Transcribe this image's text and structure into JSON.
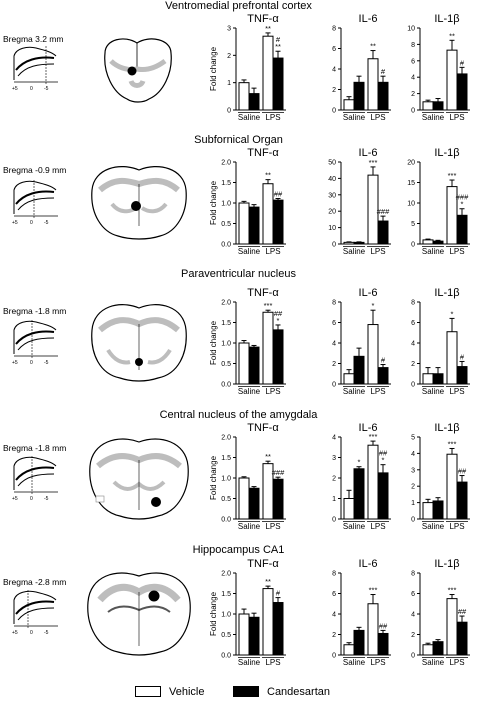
{
  "legend": {
    "items": [
      {
        "label": "Vehicle",
        "color": "#ffffff"
      },
      {
        "label": "Candesartan",
        "color": "#000000"
      }
    ]
  },
  "panels": [
    {
      "region": "Ventromedial prefrontal cortex",
      "bregma": "Bregma 3.2 mm"
    },
    {
      "region": "Subfornical Organ",
      "bregma": "Bregma -0.9 mm"
    },
    {
      "region": "Paraventricular nucleus",
      "bregma": "Bregma -1.8 mm"
    },
    {
      "region": "Central nucleus of the amygdala",
      "bregma": "Bregma -1.8 mm"
    },
    {
      "region": "Hippocampus CA1",
      "bregma": "Bregma -2.8 mm"
    }
  ],
  "mini_axis_labels": [
    "+5",
    "0",
    "-5"
  ],
  "chart_data": [
    {
      "type": "bar",
      "row": 0,
      "title": "TNF-α",
      "ylabel": "Fold change",
      "ylim": [
        0,
        3
      ],
      "yticks": [
        0,
        1,
        2,
        3
      ],
      "categories": [
        "Saline",
        "LPS"
      ],
      "series": [
        {
          "name": "Vehicle",
          "values": [
            1.0,
            2.7
          ],
          "err": [
            0.1,
            0.12
          ]
        },
        {
          "name": "Candesartan",
          "values": [
            0.6,
            1.9
          ],
          "err": [
            0.2,
            0.25
          ]
        }
      ],
      "annotations": [
        {
          "category": "LPS",
          "series": "Vehicle",
          "text": "**"
        },
        {
          "category": "LPS",
          "series": "Candesartan",
          "text": "#\n**"
        }
      ]
    },
    {
      "type": "bar",
      "row": 0,
      "title": "IL-6",
      "ylabel": "",
      "ylim": [
        0,
        8
      ],
      "yticks": [
        0,
        2,
        4,
        6,
        8
      ],
      "categories": [
        "Saline",
        "LPS"
      ],
      "series": [
        {
          "name": "Vehicle",
          "values": [
            1.0,
            5.0
          ],
          "err": [
            0.3,
            0.8
          ]
        },
        {
          "name": "Candesartan",
          "values": [
            2.7,
            2.7
          ],
          "err": [
            0.6,
            0.6
          ]
        }
      ],
      "annotations": [
        {
          "category": "LPS",
          "series": "Vehicle",
          "text": "**"
        },
        {
          "category": "LPS",
          "series": "Candesartan",
          "text": "#"
        }
      ]
    },
    {
      "type": "bar",
      "row": 0,
      "title": "IL-1β",
      "ylabel": "",
      "ylim": [
        0,
        10
      ],
      "yticks": [
        0,
        2,
        4,
        6,
        8,
        10
      ],
      "categories": [
        "Saline",
        "LPS"
      ],
      "series": [
        {
          "name": "Vehicle",
          "values": [
            1.0,
            7.3
          ],
          "err": [
            0.2,
            1.2
          ]
        },
        {
          "name": "Candesartan",
          "values": [
            1.0,
            4.4
          ],
          "err": [
            0.4,
            0.8
          ]
        }
      ],
      "annotations": [
        {
          "category": "LPS",
          "series": "Vehicle",
          "text": "**"
        },
        {
          "category": "LPS",
          "series": "Candesartan",
          "text": "#"
        }
      ]
    },
    {
      "type": "bar",
      "row": 1,
      "title": "TNF-α",
      "ylabel": "Fold change",
      "ylim": [
        0,
        2
      ],
      "yticks": [
        0.0,
        0.5,
        1.0,
        1.5,
        2.0
      ],
      "categories": [
        "Saline",
        "LPS"
      ],
      "series": [
        {
          "name": "Vehicle",
          "values": [
            1.0,
            1.47
          ],
          "err": [
            0.04,
            0.1
          ]
        },
        {
          "name": "Candesartan",
          "values": [
            0.9,
            1.07
          ],
          "err": [
            0.06,
            0.04
          ]
        }
      ],
      "annotations": [
        {
          "category": "LPS",
          "series": "Vehicle",
          "text": "**"
        },
        {
          "category": "LPS",
          "series": "Candesartan",
          "text": "##"
        }
      ]
    },
    {
      "type": "bar",
      "row": 1,
      "title": "IL-6",
      "ylabel": "",
      "ylim": [
        0,
        50
      ],
      "yticks": [
        0,
        10,
        20,
        30,
        40,
        50
      ],
      "categories": [
        "Saline",
        "LPS"
      ],
      "series": [
        {
          "name": "Vehicle",
          "values": [
            1.0,
            42
          ],
          "err": [
            0.3,
            5
          ]
        },
        {
          "name": "Candesartan",
          "values": [
            1.0,
            14
          ],
          "err": [
            0.3,
            3
          ]
        }
      ],
      "annotations": [
        {
          "category": "LPS",
          "series": "Vehicle",
          "text": "***"
        },
        {
          "category": "LPS",
          "series": "Candesartan",
          "text": "###"
        }
      ]
    },
    {
      "type": "bar",
      "row": 1,
      "title": "IL-1β",
      "ylabel": "",
      "ylim": [
        0,
        20
      ],
      "yticks": [
        0,
        5,
        10,
        15,
        20
      ],
      "categories": [
        "Saline",
        "LPS"
      ],
      "series": [
        {
          "name": "Vehicle",
          "values": [
            1.0,
            14
          ],
          "err": [
            0.2,
            1.6
          ]
        },
        {
          "name": "Candesartan",
          "values": [
            0.7,
            7.0
          ],
          "err": [
            0.2,
            1.6
          ]
        }
      ],
      "annotations": [
        {
          "category": "LPS",
          "series": "Vehicle",
          "text": "***"
        },
        {
          "category": "LPS",
          "series": "Candesartan",
          "text": "###\n*"
        }
      ]
    },
    {
      "type": "bar",
      "row": 2,
      "title": "TNF-α",
      "ylabel": "Fold change",
      "ylim": [
        0,
        2
      ],
      "yticks": [
        0.0,
        0.5,
        1.0,
        1.5,
        2.0
      ],
      "categories": [
        "Saline",
        "LPS"
      ],
      "series": [
        {
          "name": "Vehicle",
          "values": [
            1.0,
            1.75
          ],
          "err": [
            0.06,
            0.05
          ]
        },
        {
          "name": "Candesartan",
          "values": [
            0.9,
            1.32
          ],
          "err": [
            0.04,
            0.12
          ]
        }
      ],
      "annotations": [
        {
          "category": "LPS",
          "series": "Vehicle",
          "text": "***"
        },
        {
          "category": "LPS",
          "series": "Candesartan",
          "text": "##\n*"
        }
      ]
    },
    {
      "type": "bar",
      "row": 2,
      "title": "IL-6",
      "ylabel": "",
      "ylim": [
        0,
        8
      ],
      "yticks": [
        0,
        2,
        4,
        6,
        8
      ],
      "categories": [
        "Saline",
        "LPS"
      ],
      "series": [
        {
          "name": "Vehicle",
          "values": [
            1.0,
            5.8
          ],
          "err": [
            0.4,
            1.4
          ]
        },
        {
          "name": "Candesartan",
          "values": [
            2.7,
            1.6
          ],
          "err": [
            0.8,
            0.3
          ]
        }
      ],
      "annotations": [
        {
          "category": "LPS",
          "series": "Vehicle",
          "text": "*"
        },
        {
          "category": "LPS",
          "series": "Candesartan",
          "text": "#"
        }
      ]
    },
    {
      "type": "bar",
      "row": 2,
      "title": "IL-1β",
      "ylabel": "",
      "ylim": [
        0,
        8
      ],
      "yticks": [
        0,
        2,
        4,
        6,
        8
      ],
      "categories": [
        "Saline",
        "LPS"
      ],
      "series": [
        {
          "name": "Vehicle",
          "values": [
            1.0,
            5.1
          ],
          "err": [
            0.6,
            1.3
          ]
        },
        {
          "name": "Candesartan",
          "values": [
            1.0,
            1.7
          ],
          "err": [
            0.6,
            0.5
          ]
        }
      ],
      "annotations": [
        {
          "category": "LPS",
          "series": "Vehicle",
          "text": "*"
        },
        {
          "category": "LPS",
          "series": "Candesartan",
          "text": "#"
        }
      ]
    },
    {
      "type": "bar",
      "row": 3,
      "title": "TNF-α",
      "ylabel": "Fold change",
      "ylim": [
        0,
        2
      ],
      "yticks": [
        0.0,
        0.5,
        1.0,
        1.5,
        2.0
      ],
      "categories": [
        "Saline",
        "LPS"
      ],
      "series": [
        {
          "name": "Vehicle",
          "values": [
            1.0,
            1.35
          ],
          "err": [
            0.03,
            0.06
          ]
        },
        {
          "name": "Candesartan",
          "values": [
            0.75,
            0.97
          ],
          "err": [
            0.04,
            0.05
          ]
        }
      ],
      "annotations": [
        {
          "category": "LPS",
          "series": "Vehicle",
          "text": "**"
        },
        {
          "category": "LPS",
          "series": "Candesartan",
          "text": "###"
        }
      ]
    },
    {
      "type": "bar",
      "row": 3,
      "title": "IL-6",
      "ylabel": "",
      "ylim": [
        0,
        4
      ],
      "yticks": [
        0,
        1,
        2,
        3,
        4
      ],
      "categories": [
        "Saline",
        "LPS"
      ],
      "series": [
        {
          "name": "Vehicle",
          "values": [
            1.0,
            3.6
          ],
          "err": [
            0.4,
            0.2
          ]
        },
        {
          "name": "Candesartan",
          "values": [
            2.45,
            2.25
          ],
          "err": [
            0.1,
            0.4
          ]
        }
      ],
      "annotations": [
        {
          "category": "Saline",
          "series": "Candesartan",
          "text": "*"
        },
        {
          "category": "LPS",
          "series": "Vehicle",
          "text": "***"
        },
        {
          "category": "LPS",
          "series": "Candesartan",
          "text": "##\n*"
        }
      ]
    },
    {
      "type": "bar",
      "row": 3,
      "title": "IL-1β",
      "ylabel": "",
      "ylim": [
        0,
        5
      ],
      "yticks": [
        0,
        1,
        2,
        3,
        4,
        5
      ],
      "categories": [
        "Saline",
        "LPS"
      ],
      "series": [
        {
          "name": "Vehicle",
          "values": [
            1.0,
            3.95
          ],
          "err": [
            0.2,
            0.35
          ]
        },
        {
          "name": "Candesartan",
          "values": [
            1.1,
            2.25
          ],
          "err": [
            0.2,
            0.4
          ]
        }
      ],
      "annotations": [
        {
          "category": "LPS",
          "series": "Vehicle",
          "text": "***"
        },
        {
          "category": "LPS",
          "series": "Candesartan",
          "text": "##"
        }
      ]
    },
    {
      "type": "bar",
      "row": 4,
      "title": "TNF-α",
      "ylabel": "Fold change",
      "ylim": [
        0,
        2
      ],
      "yticks": [
        0.0,
        0.5,
        1.0,
        1.5,
        2.0
      ],
      "categories": [
        "Saline",
        "LPS"
      ],
      "series": [
        {
          "name": "Vehicle",
          "values": [
            1.0,
            1.62
          ],
          "err": [
            0.12,
            0.06
          ]
        },
        {
          "name": "Candesartan",
          "values": [
            0.92,
            1.28
          ],
          "err": [
            0.1,
            0.12
          ]
        }
      ],
      "annotations": [
        {
          "category": "LPS",
          "series": "Vehicle",
          "text": "**"
        },
        {
          "category": "LPS",
          "series": "Candesartan",
          "text": "#"
        }
      ]
    },
    {
      "type": "bar",
      "row": 4,
      "title": "IL-6",
      "ylabel": "",
      "ylim": [
        0,
        8
      ],
      "yticks": [
        0,
        2,
        4,
        6,
        8
      ],
      "categories": [
        "Saline",
        "LPS"
      ],
      "series": [
        {
          "name": "Vehicle",
          "values": [
            1.0,
            5.0
          ],
          "err": [
            0.2,
            0.9
          ]
        },
        {
          "name": "Candesartan",
          "values": [
            2.4,
            2.1
          ],
          "err": [
            0.3,
            0.3
          ]
        }
      ],
      "annotations": [
        {
          "category": "LPS",
          "series": "Vehicle",
          "text": "***"
        },
        {
          "category": "LPS",
          "series": "Candesartan",
          "text": "##"
        }
      ]
    },
    {
      "type": "bar",
      "row": 4,
      "title": "IL-1β",
      "ylabel": "",
      "ylim": [
        0,
        8
      ],
      "yticks": [
        0,
        2,
        4,
        6,
        8
      ],
      "categories": [
        "Saline",
        "LPS"
      ],
      "series": [
        {
          "name": "Vehicle",
          "values": [
            1.0,
            5.5
          ],
          "err": [
            0.15,
            0.4
          ]
        },
        {
          "name": "Candesartan",
          "values": [
            1.3,
            3.2
          ],
          "err": [
            0.2,
            0.6
          ]
        }
      ],
      "annotations": [
        {
          "category": "LPS",
          "series": "Vehicle",
          "text": "***"
        },
        {
          "category": "LPS",
          "series": "Candesartan",
          "text": "##"
        }
      ]
    }
  ]
}
